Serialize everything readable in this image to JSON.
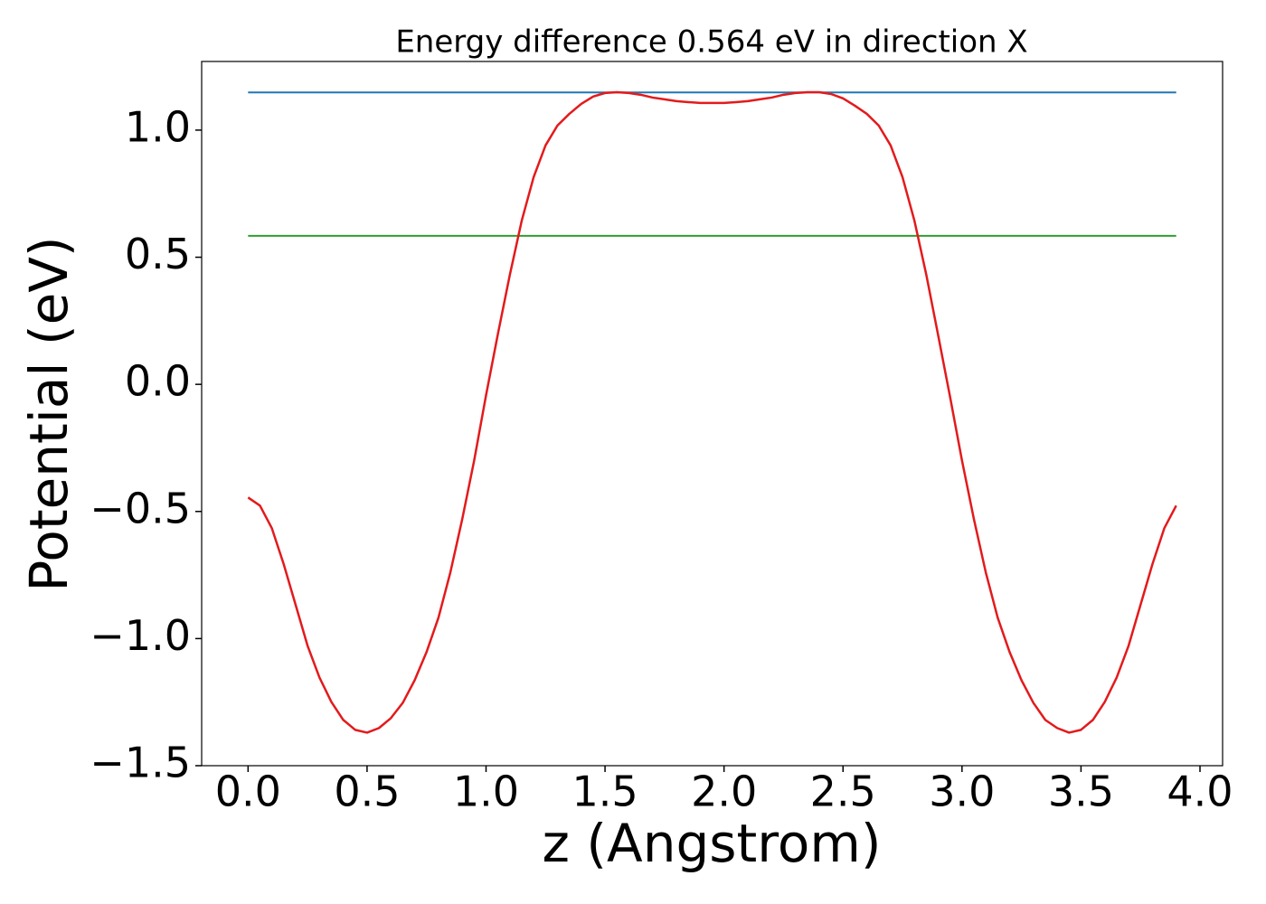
{
  "chart_data": {
    "type": "line",
    "title": "Energy difference 0.564 eV in direction X",
    "xlabel": "z (Angstrom)",
    "ylabel": "Potential (eV)",
    "xlim": [
      -0.195,
      4.095
    ],
    "ylim": [
      -1.5,
      1.27
    ],
    "xticks": [
      {
        "value": 0,
        "label": "0.0"
      },
      0.5,
      {
        "value": 1,
        "label": "1.0"
      },
      1.5,
      {
        "value": 2,
        "label": "2.0"
      },
      2.5,
      {
        "value": 3,
        "label": "3.0"
      },
      3.5,
      {
        "value": 4,
        "label": "4.0"
      }
    ],
    "yticks": [
      {
        "value": -1.5,
        "label": "−1.5"
      },
      {
        "value": -1,
        "label": "−1.0"
      },
      {
        "value": -0.5,
        "label": "−0.5"
      },
      {
        "value": 0,
        "label": "0.0"
      },
      0.5,
      {
        "value": 1,
        "label": "1.0"
      }
    ],
    "series": [
      {
        "color": "#1f77b4",
        "x": [
          0,
          3.9
        ],
        "values": [
          1.148,
          1.148
        ]
      },
      {
        "color": "#2ca02c",
        "x": [
          0,
          3.9
        ],
        "values": [
          0.584,
          0.584
        ]
      },
      {
        "color": "#e31a1c",
        "x": [
          0,
          0.05,
          0.1,
          0.15,
          0.2,
          0.25,
          0.3,
          0.35,
          0.4,
          0.45,
          0.5,
          0.55,
          0.6,
          0.65,
          0.7,
          0.75,
          0.8,
          0.85,
          0.9,
          0.95,
          1,
          1.05,
          1.1,
          1.15,
          1.2,
          1.25,
          1.3,
          1.35,
          1.4,
          1.45,
          1.5,
          1.55,
          1.6,
          1.65,
          1.7,
          1.75,
          1.8,
          1.85,
          1.9,
          1.95,
          2,
          2.05,
          2.1,
          2.15,
          2.2,
          2.25,
          2.3,
          2.35,
          2.4,
          2.45,
          2.5,
          2.55,
          2.6,
          2.65,
          2.7,
          2.75,
          2.8,
          2.85,
          2.9,
          2.95,
          3,
          3.05,
          3.1,
          3.15,
          3.2,
          3.25,
          3.3,
          3.35,
          3.4,
          3.45,
          3.5,
          3.55,
          3.6,
          3.65,
          3.7,
          3.75,
          3.8,
          3.85,
          3.9
        ],
        "values": [
          -0.445,
          -0.477,
          -0.566,
          -0.708,
          -0.868,
          -1.028,
          -1.153,
          -1.249,
          -1.32,
          -1.359,
          -1.37,
          -1.352,
          -1.313,
          -1.253,
          -1.164,
          -1.053,
          -0.918,
          -0.74,
          -0.53,
          -0.3,
          -0.043,
          0.199,
          0.431,
          0.644,
          0.815,
          0.94,
          1.018,
          1.064,
          1.103,
          1.132,
          1.146,
          1.149,
          1.146,
          1.139,
          1.128,
          1.121,
          1.114,
          1.11,
          1.107,
          1.107,
          1.107,
          1.11,
          1.114,
          1.121,
          1.128,
          1.139,
          1.146,
          1.149,
          1.149,
          1.142,
          1.125,
          1.096,
          1.064,
          1.018,
          0.94,
          0.815,
          0.644,
          0.431,
          0.192,
          -0.05,
          -0.3,
          -0.53,
          -0.74,
          -0.918,
          -1.053,
          -1.164,
          -1.253,
          -1.32,
          -1.352,
          -1.37,
          -1.359,
          -1.32,
          -1.249,
          -1.153,
          -1.028,
          -0.868,
          -0.708,
          -0.566,
          -0.477
        ]
      }
    ]
  }
}
